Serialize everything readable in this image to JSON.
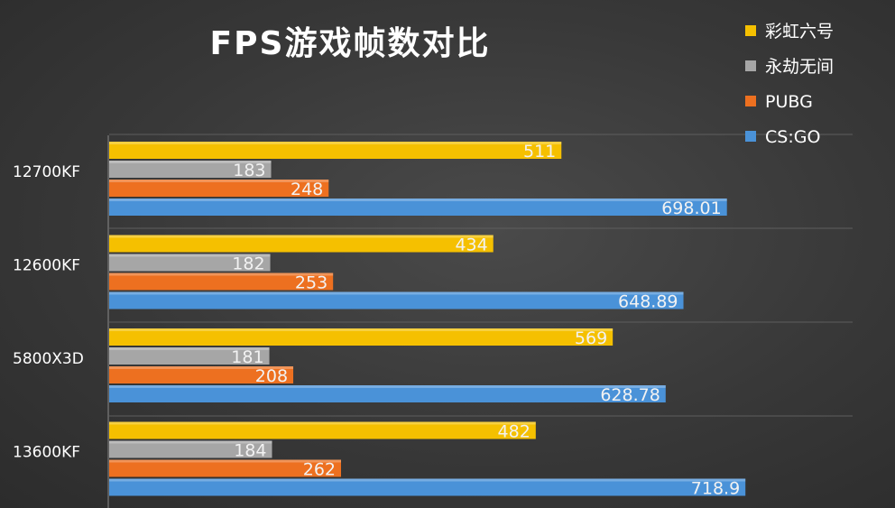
{
  "chart_data": {
    "type": "bar",
    "orientation": "horizontal",
    "title": "FPS游戏帧数对比",
    "categories": [
      "12700KF",
      "12600KF",
      "5800X3D",
      "13600KF"
    ],
    "series": [
      {
        "name": "彩虹六号",
        "color": "#f5c000",
        "values": [
          511,
          434,
          569,
          482
        ],
        "labels": [
          "511",
          "434",
          "569",
          "482"
        ]
      },
      {
        "name": "永劫无间",
        "color": "#a6a6a6",
        "values": [
          183,
          182,
          181,
          184
        ],
        "labels": [
          "183",
          "182",
          "181",
          "184"
        ]
      },
      {
        "name": "PUBG",
        "color": "#ed7020",
        "values": [
          248,
          253,
          208,
          262
        ],
        "labels": [
          "248",
          "253",
          "208",
          "262"
        ]
      },
      {
        "name": "CS:GO",
        "color": "#4a92d8",
        "values": [
          698.01,
          648.89,
          628.78,
          718.9
        ],
        "labels": [
          "698.01",
          "648.89",
          "628.78",
          "718.9"
        ]
      }
    ],
    "xlim": [
      0,
      840
    ],
    "grid": true,
    "legend": "top-right"
  }
}
